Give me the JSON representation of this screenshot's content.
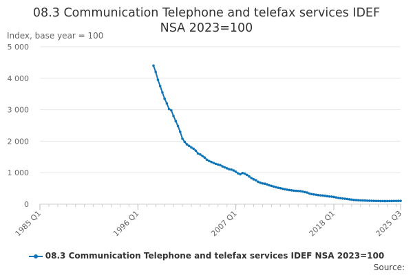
{
  "chart_data": {
    "type": "line",
    "title_line1": "08.3 Communication Telephone and telefax services IDEF",
    "title_line2": "NSA 2023=100",
    "ylabel": "Index, base year = 100",
    "xlabel": "",
    "ylim": [
      0,
      5000
    ],
    "y_ticks": [
      0,
      1000,
      2000,
      3000,
      4000,
      5000
    ],
    "y_tick_labels": [
      "0",
      "1 000",
      "2 000",
      "3 000",
      "4 000",
      "5 000"
    ],
    "x_ticks": [
      1985,
      1996,
      2007,
      2018,
      2025.5
    ],
    "x_tick_labels": [
      "1985 Q1",
      "1996 Q1",
      "2007 Q1",
      "2018 Q1",
      "2025 Q3"
    ],
    "xlim": [
      1985,
      2025.5
    ],
    "grid": "horizontal",
    "legend_position": "bottom",
    "series": [
      {
        "name": "08.3 Communication Telephone and telefax services IDEF NSA 2023=100",
        "color": "#0e75b8",
        "points": [
          [
            1997.75,
            4400
          ],
          [
            1998.0,
            4200
          ],
          [
            1998.25,
            3950
          ],
          [
            1998.5,
            3750
          ],
          [
            1998.75,
            3550
          ],
          [
            1999.0,
            3350
          ],
          [
            1999.25,
            3200
          ],
          [
            1999.5,
            3020
          ],
          [
            1999.75,
            2980
          ],
          [
            2000.0,
            2800
          ],
          [
            2000.25,
            2640
          ],
          [
            2000.5,
            2480
          ],
          [
            2000.75,
            2300
          ],
          [
            2001.0,
            2080
          ],
          [
            2001.25,
            1980
          ],
          [
            2001.5,
            1900
          ],
          [
            2001.75,
            1850
          ],
          [
            2002.0,
            1800
          ],
          [
            2002.25,
            1760
          ],
          [
            2002.5,
            1700
          ],
          [
            2002.75,
            1610
          ],
          [
            2003.0,
            1580
          ],
          [
            2003.25,
            1530
          ],
          [
            2003.5,
            1480
          ],
          [
            2003.75,
            1410
          ],
          [
            2004.0,
            1370
          ],
          [
            2004.25,
            1340
          ],
          [
            2004.5,
            1310
          ],
          [
            2004.75,
            1280
          ],
          [
            2005.0,
            1260
          ],
          [
            2005.25,
            1240
          ],
          [
            2005.5,
            1200
          ],
          [
            2005.75,
            1170
          ],
          [
            2006.0,
            1140
          ],
          [
            2006.25,
            1110
          ],
          [
            2006.5,
            1100
          ],
          [
            2006.75,
            1070
          ],
          [
            2007.0,
            1030
          ],
          [
            2007.25,
            980
          ],
          [
            2007.5,
            950
          ],
          [
            2007.75,
            990
          ],
          [
            2008.0,
            970
          ],
          [
            2008.25,
            930
          ],
          [
            2008.5,
            880
          ],
          [
            2008.75,
            830
          ],
          [
            2009.0,
            790
          ],
          [
            2009.25,
            760
          ],
          [
            2009.5,
            710
          ],
          [
            2009.75,
            680
          ],
          [
            2010.0,
            660
          ],
          [
            2010.25,
            650
          ],
          [
            2010.5,
            630
          ],
          [
            2010.75,
            600
          ],
          [
            2011.0,
            580
          ],
          [
            2011.25,
            560
          ],
          [
            2011.5,
            540
          ],
          [
            2011.75,
            520
          ],
          [
            2012.0,
            510
          ],
          [
            2012.25,
            490
          ],
          [
            2012.5,
            475
          ],
          [
            2012.75,
            460
          ],
          [
            2013.0,
            450
          ],
          [
            2013.25,
            440
          ],
          [
            2013.5,
            430
          ],
          [
            2013.75,
            425
          ],
          [
            2014.0,
            420
          ],
          [
            2014.25,
            415
          ],
          [
            2014.5,
            400
          ],
          [
            2014.75,
            385
          ],
          [
            2015.0,
            370
          ],
          [
            2015.25,
            340
          ],
          [
            2015.5,
            320
          ],
          [
            2015.75,
            310
          ],
          [
            2016.0,
            300
          ],
          [
            2016.25,
            290
          ],
          [
            2016.5,
            280
          ],
          [
            2016.75,
            275
          ],
          [
            2017.0,
            265
          ],
          [
            2017.25,
            255
          ],
          [
            2017.5,
            245
          ],
          [
            2017.75,
            240
          ],
          [
            2018.0,
            230
          ],
          [
            2018.25,
            215
          ],
          [
            2018.5,
            200
          ],
          [
            2018.75,
            190
          ],
          [
            2019.0,
            180
          ],
          [
            2019.25,
            175
          ],
          [
            2019.5,
            165
          ],
          [
            2019.75,
            155
          ],
          [
            2020.0,
            145
          ],
          [
            2020.25,
            135
          ],
          [
            2020.5,
            130
          ],
          [
            2020.75,
            125
          ],
          [
            2021.0,
            120
          ],
          [
            2021.25,
            118
          ],
          [
            2021.5,
            115
          ],
          [
            2021.75,
            112
          ],
          [
            2022.0,
            110
          ],
          [
            2022.25,
            108
          ],
          [
            2022.5,
            106
          ],
          [
            2022.75,
            104
          ],
          [
            2023.0,
            103
          ],
          [
            2023.25,
            101
          ],
          [
            2023.5,
            100
          ],
          [
            2023.75,
            99
          ],
          [
            2024.0,
            100
          ],
          [
            2024.25,
            101
          ],
          [
            2024.5,
            102
          ],
          [
            2024.75,
            103
          ],
          [
            2025.0,
            104
          ],
          [
            2025.25,
            105
          ],
          [
            2025.5,
            106
          ]
        ]
      }
    ]
  },
  "legend": {
    "label": "08.3 Communication Telephone and telefax services IDEF NSA 2023=100"
  },
  "footer": {
    "source": "Source:"
  }
}
